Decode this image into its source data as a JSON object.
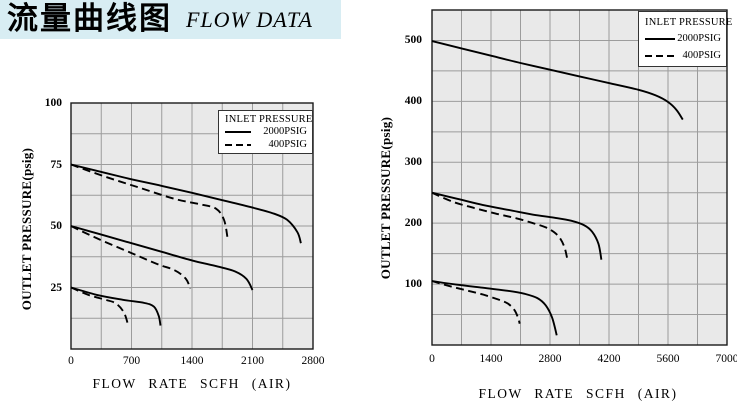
{
  "header": {
    "title_cn": "流量曲线图",
    "title_en": "FLOW DATA",
    "bg_color": "#d8edf3"
  },
  "colors": {
    "plot_bg": "#e9e9e9",
    "grid": "#9c9c9c",
    "curve": "#000000",
    "border": "#1a1a1a"
  },
  "chart_data": [
    {
      "id": "left-chart",
      "type": "line",
      "title": "",
      "xlabel": "FLOW RATE SCFH (AIR)",
      "ylabel": "OUTLET PRESSURE(psig)",
      "xlim": [
        0,
        2800
      ],
      "ylim": [
        0,
        100
      ],
      "x_grid_step": 350,
      "y_grid_step": 12.5,
      "x_ticks": [
        0,
        700,
        1400,
        2100,
        2800
      ],
      "y_ticks": [
        25,
        50,
        75,
        100
      ],
      "grid": "on",
      "legend": {
        "title": "INLET PRESSURE",
        "position": "top-right",
        "entries": [
          {
            "label": "2000PSIG",
            "style": "solid"
          },
          {
            "label": "400PSIG",
            "style": "dashed"
          }
        ]
      },
      "series": [
        {
          "name": "2000PSIG-set75",
          "style": "solid",
          "points": [
            [
              0,
              75
            ],
            [
              350,
              72
            ],
            [
              700,
              69
            ],
            [
              1050,
              66.3
            ],
            [
              1400,
              63.5
            ],
            [
              1750,
              60.5
            ],
            [
              2100,
              57.5
            ],
            [
              2350,
              55
            ],
            [
              2500,
              52.5
            ],
            [
              2620,
              47.5
            ],
            [
              2660,
              43
            ]
          ]
        },
        {
          "name": "400PSIG-set75",
          "style": "dashed",
          "points": [
            [
              0,
              75
            ],
            [
              400,
              70
            ],
            [
              800,
              65.5
            ],
            [
              1200,
              61
            ],
            [
              1500,
              58.8
            ],
            [
              1680,
              57
            ],
            [
              1770,
              52.5
            ],
            [
              1810,
              45.5
            ]
          ]
        },
        {
          "name": "2000PSIG-set50",
          "style": "solid",
          "points": [
            [
              0,
              50
            ],
            [
              350,
              46.5
            ],
            [
              700,
              43
            ],
            [
              1050,
              39.5
            ],
            [
              1400,
              36
            ],
            [
              1700,
              33.5
            ],
            [
              1900,
              31.5
            ],
            [
              2030,
              28.5
            ],
            [
              2100,
              24
            ]
          ]
        },
        {
          "name": "400PSIG-set50",
          "style": "dashed",
          "points": [
            [
              0,
              50
            ],
            [
              300,
              45
            ],
            [
              700,
              39
            ],
            [
              1000,
              34.5
            ],
            [
              1200,
              32
            ],
            [
              1330,
              28.5
            ],
            [
              1380,
              24.5
            ]
          ]
        },
        {
          "name": "2000PSIG-set25",
          "style": "solid",
          "points": [
            [
              0,
              25
            ],
            [
              300,
              22
            ],
            [
              600,
              20
            ],
            [
              850,
              18.7
            ],
            [
              960,
              17.2
            ],
            [
              1015,
              13.5
            ],
            [
              1035,
              9.5
            ]
          ]
        },
        {
          "name": "400PSIG-set25",
          "style": "dashed",
          "points": [
            [
              0,
              25
            ],
            [
              200,
              22
            ],
            [
              400,
              20
            ],
            [
              520,
              18.5
            ],
            [
              610,
              15
            ],
            [
              655,
              10.5
            ]
          ]
        }
      ]
    },
    {
      "id": "right-chart",
      "type": "line",
      "title": "",
      "xlabel": "FLOW RATE SCFH (AIR)",
      "ylabel": "OUTLET PRESSURE(psig)",
      "xlim": [
        0,
        7000
      ],
      "ylim": [
        0,
        550
      ],
      "x_grid_step": 700,
      "y_grid_step": 50,
      "x_ticks": [
        0,
        1400,
        2800,
        4200,
        5600,
        7000
      ],
      "y_ticks": [
        100,
        200,
        300,
        400,
        500
      ],
      "grid": "on",
      "legend": {
        "title": "INLET PRESSURE",
        "position": "top-right",
        "entries": [
          {
            "label": "2000PSIG",
            "style": "solid"
          },
          {
            "label": "400PSIG",
            "style": "dashed"
          }
        ]
      },
      "series": [
        {
          "name": "2000PSIG-set500",
          "style": "solid",
          "points": [
            [
              0,
              499
            ],
            [
              700,
              487
            ],
            [
              1400,
              475
            ],
            [
              2100,
              463
            ],
            [
              2800,
              452
            ],
            [
              3500,
              441
            ],
            [
              4200,
              430
            ],
            [
              4900,
              419
            ],
            [
              5300,
              410
            ],
            [
              5600,
              399
            ],
            [
              5800,
              386
            ],
            [
              5950,
              370
            ]
          ]
        },
        {
          "name": "2000PSIG-set250",
          "style": "solid",
          "points": [
            [
              0,
              250
            ],
            [
              600,
              240
            ],
            [
              1200,
              230
            ],
            [
              1800,
              222
            ],
            [
              2400,
              214
            ],
            [
              2900,
              209
            ],
            [
              3300,
              204
            ],
            [
              3600,
              197
            ],
            [
              3800,
              186
            ],
            [
              3950,
              166
            ],
            [
              4020,
              140
            ]
          ]
        },
        {
          "name": "400PSIG-set250",
          "style": "dashed",
          "points": [
            [
              0,
              250
            ],
            [
              500,
              235
            ],
            [
              1000,
              225
            ],
            [
              1500,
              216
            ],
            [
              2000,
              208
            ],
            [
              2400,
              200
            ],
            [
              2700,
              193
            ],
            [
              2900,
              185
            ],
            [
              3050,
              174
            ],
            [
              3150,
              159
            ],
            [
              3210,
              141
            ]
          ]
        },
        {
          "name": "2000PSIG-set105",
          "style": "solid",
          "points": [
            [
              0,
              105
            ],
            [
              600,
              99
            ],
            [
              1200,
              94
            ],
            [
              1800,
              89
            ],
            [
              2200,
              84
            ],
            [
              2500,
              77
            ],
            [
              2700,
              65
            ],
            [
              2850,
              45
            ],
            [
              2960,
              16
            ]
          ]
        },
        {
          "name": "400PSIG-set105",
          "style": "dashed",
          "points": [
            [
              0,
              105
            ],
            [
              400,
              97
            ],
            [
              800,
              90
            ],
            [
              1200,
              83
            ],
            [
              1600,
              74
            ],
            [
              1800,
              68
            ],
            [
              1950,
              58
            ],
            [
              2040,
              45
            ],
            [
              2080,
              35
            ]
          ]
        }
      ]
    }
  ]
}
